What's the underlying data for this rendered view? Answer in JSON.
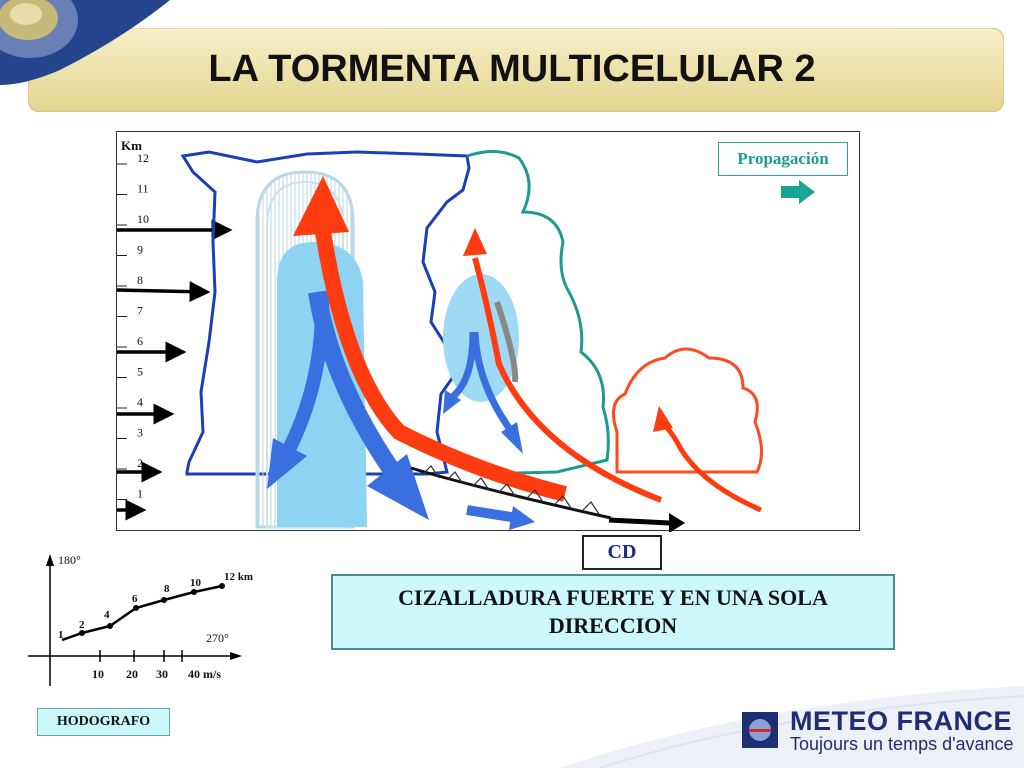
{
  "title": "LA TORMENTA MULTICELULAR 2",
  "altitude_scale": {
    "unit": "Km",
    "levels": [
      "12",
      "11",
      "10",
      "9",
      "8",
      "7",
      "6",
      "5",
      "4",
      "3",
      "2",
      "1"
    ]
  },
  "propagation_label": "Propagación",
  "cd_label": "CD",
  "caption": "CIZALLADURA FUERTE Y EN UNA SOLA DIRECCION",
  "hodograph": {
    "label": "HODOGRAFO",
    "direction_top": "180°",
    "direction_right": "270°",
    "speed_ticks": [
      "10",
      "20",
      "30",
      "40 m/s"
    ],
    "point_labels": [
      "1",
      "2",
      "4",
      "6",
      "8",
      "10",
      "12 km"
    ]
  },
  "logo": {
    "brand": "METEO FRANCE",
    "tagline": "Toujours un temps d'avance"
  },
  "colors": {
    "updraft": "#ff3b10",
    "downdraft": "#3a6fe0",
    "mature_cell": "#1a3fb8",
    "old_cell": "#1f9a8e",
    "new_cell": "#ff4a20",
    "propagation": "#17a595",
    "caption_bg": "#ccf7fb"
  }
}
